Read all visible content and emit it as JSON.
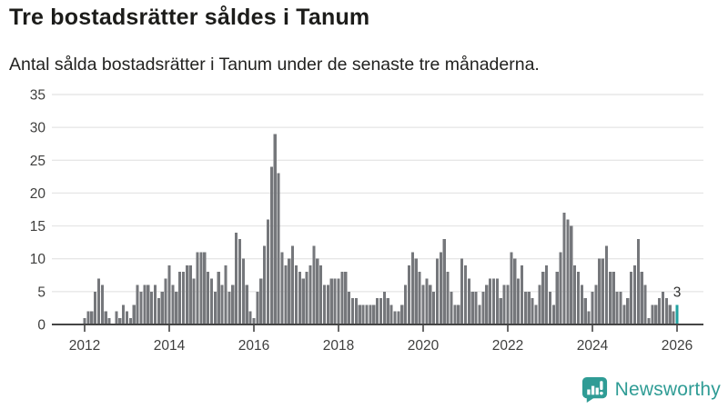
{
  "header": {
    "title": "Tre bostadsrätter såldes i Tanum",
    "subtitle": "Antal sålda bostadsrätter i Tanum under de senaste tre månaderna."
  },
  "chart_data": {
    "type": "bar",
    "title": "Tre bostadsrätter såldes i Tanum",
    "x_start": "2012-01",
    "frequency": "monthly-rolling-3-month-sum",
    "values": [
      1,
      2,
      2,
      5,
      7,
      6,
      2,
      1,
      0,
      2,
      1,
      3,
      2,
      1,
      3,
      6,
      5,
      6,
      6,
      5,
      6,
      4,
      5,
      7,
      9,
      6,
      5,
      8,
      8,
      9,
      9,
      7,
      11,
      11,
      11,
      8,
      7,
      5,
      8,
      6,
      9,
      5,
      6,
      14,
      13,
      10,
      6,
      2,
      1,
      5,
      7,
      12,
      16,
      24,
      29,
      23,
      11,
      9,
      10,
      12,
      9,
      8,
      7,
      8,
      9,
      12,
      10,
      9,
      6,
      6,
      7,
      7,
      7,
      8,
      8,
      5,
      4,
      4,
      3,
      3,
      3,
      3,
      3,
      4,
      4,
      5,
      4,
      3,
      2,
      2,
      3,
      6,
      9,
      11,
      10,
      8,
      6,
      7,
      6,
      5,
      10,
      11,
      13,
      8,
      5,
      3,
      3,
      10,
      9,
      7,
      5,
      5,
      3,
      5,
      6,
      7,
      7,
      7,
      4,
      6,
      6,
      11,
      10,
      7,
      9,
      5,
      5,
      4,
      3,
      6,
      8,
      9,
      5,
      3,
      8,
      11,
      17,
      16,
      15,
      9,
      8,
      6,
      4,
      2,
      5,
      6,
      10,
      10,
      12,
      8,
      8,
      5,
      5,
      3,
      4,
      8,
      9,
      13,
      8,
      6,
      1,
      3,
      3,
      4,
      5,
      4,
      3,
      2,
      3
    ],
    "highlight_last": true,
    "last_value_label": "3",
    "y_ticks": [
      0,
      5,
      10,
      15,
      20,
      25,
      30,
      35
    ],
    "x_ticks": [
      "2012",
      "2014",
      "2016",
      "2018",
      "2020",
      "2022",
      "2024",
      "2026"
    ],
    "ylim": [
      0,
      35
    ],
    "grid": "horizontal",
    "legend": "none",
    "bar_color": "#75777b",
    "highlight_color": "#21a2a0",
    "axis_color": "#454545",
    "grid_color": "#e7e7e7",
    "tick_label_color": "#3f3f3e",
    "annotation_color": "#2e2e2d"
  },
  "footer": {
    "brand": "Newsworthy"
  }
}
